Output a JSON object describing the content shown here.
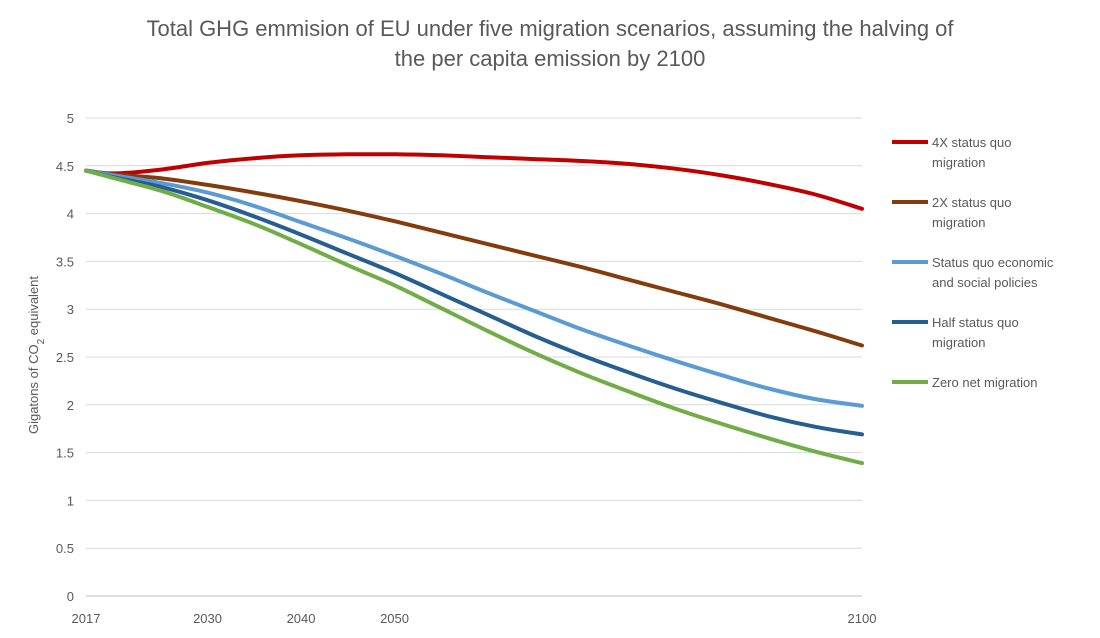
{
  "chart_data": {
    "type": "line",
    "title_lines": [
      "Total GHG emmision of EU under five migration scenarios, assuming the halving of",
      "the per capita emission by 2100"
    ],
    "ylabel_prefix": "Gigatons of CO",
    "ylabel_sub": "2",
    "ylabel_suffix": " equivalent",
    "ylim": [
      0,
      5
    ],
    "xlim": [
      2017,
      2100
    ],
    "yticks": [
      0,
      0.5,
      1,
      1.5,
      2,
      2.5,
      3,
      3.5,
      4,
      4.5,
      5
    ],
    "ytick_labels": [
      "0",
      "0.5",
      "1",
      "1.5",
      "2",
      "2.5",
      "3",
      "3.5",
      "4",
      "4.5",
      "5"
    ],
    "xticks": [
      2017,
      2030,
      2040,
      2050,
      2100
    ],
    "xtick_labels": [
      "2017",
      "2030",
      "2040",
      "2050",
      "2100"
    ],
    "grid": true,
    "legend_position": "right",
    "series": [
      {
        "name": "4X status quo migration",
        "legend_lines": [
          "4X status quo",
          "migration"
        ],
        "color": "#c00000",
        "x": [
          2017,
          2020,
          2025,
          2030,
          2035,
          2040,
          2045,
          2050,
          2055,
          2060,
          2065,
          2070,
          2075,
          2080,
          2085,
          2090,
          2095,
          2100
        ],
        "y": [
          4.45,
          4.42,
          4.46,
          4.53,
          4.58,
          4.61,
          4.62,
          4.62,
          4.61,
          4.59,
          4.57,
          4.55,
          4.52,
          4.47,
          4.4,
          4.31,
          4.2,
          4.05
        ]
      },
      {
        "name": "2X status quo migration",
        "legend_lines": [
          "2X status quo",
          "migration"
        ],
        "color": "#843c0c",
        "x": [
          2017,
          2020,
          2025,
          2030,
          2035,
          2040,
          2045,
          2050,
          2055,
          2060,
          2065,
          2070,
          2075,
          2080,
          2085,
          2090,
          2095,
          2100
        ],
        "y": [
          4.45,
          4.41,
          4.37,
          4.3,
          4.22,
          4.13,
          4.03,
          3.92,
          3.8,
          3.68,
          3.56,
          3.44,
          3.31,
          3.18,
          3.05,
          2.91,
          2.77,
          2.62
        ]
      },
      {
        "name": "Status quo economic and social policies",
        "legend_lines": [
          "Status quo economic",
          "and social policies"
        ],
        "color": "#5b9bd5",
        "x": [
          2017,
          2020,
          2025,
          2030,
          2035,
          2040,
          2045,
          2050,
          2055,
          2060,
          2065,
          2070,
          2075,
          2080,
          2085,
          2090,
          2095,
          2100
        ],
        "y": [
          4.45,
          4.4,
          4.32,
          4.22,
          4.08,
          3.91,
          3.74,
          3.56,
          3.37,
          3.17,
          2.98,
          2.79,
          2.62,
          2.46,
          2.31,
          2.17,
          2.06,
          1.99
        ]
      },
      {
        "name": "Half status quo migration",
        "legend_lines": [
          "Half status quo",
          "migration"
        ],
        "color": "#255e91",
        "x": [
          2017,
          2020,
          2025,
          2030,
          2035,
          2040,
          2045,
          2050,
          2055,
          2060,
          2065,
          2070,
          2075,
          2080,
          2085,
          2090,
          2095,
          2100
        ],
        "y": [
          4.45,
          4.38,
          4.28,
          4.14,
          3.97,
          3.78,
          3.58,
          3.38,
          3.16,
          2.94,
          2.72,
          2.52,
          2.34,
          2.17,
          2.02,
          1.88,
          1.77,
          1.69
        ]
      },
      {
        "name": "Zero net migration",
        "legend_lines": [
          "Zero net migration"
        ],
        "color": "#70ad47",
        "x": [
          2017,
          2020,
          2025,
          2030,
          2035,
          2040,
          2045,
          2050,
          2055,
          2060,
          2065,
          2070,
          2075,
          2080,
          2085,
          2090,
          2095,
          2100
        ],
        "y": [
          4.45,
          4.37,
          4.24,
          4.07,
          3.89,
          3.68,
          3.46,
          3.25,
          3.01,
          2.77,
          2.54,
          2.33,
          2.14,
          1.96,
          1.8,
          1.65,
          1.51,
          1.39
        ]
      }
    ]
  }
}
